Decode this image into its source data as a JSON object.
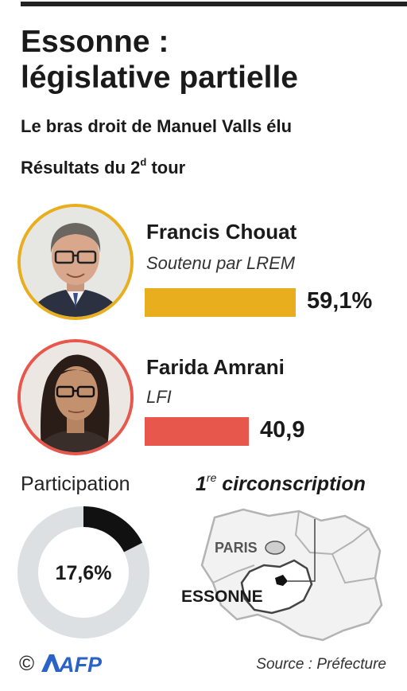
{
  "header": {
    "title_line1": "Essonne :",
    "title_line2": "législative partielle",
    "subtitle": "Le bras droit de Manuel Valls élu",
    "round_prefix": "Résultats du 2",
    "round_sup": "d",
    "round_suffix": " tour"
  },
  "colors": {
    "winner": "#E8AE1E",
    "runner_up": "#E8574C",
    "donut_track": "#DCE0E3",
    "donut_fill": "#111111"
  },
  "chart_data": [
    {
      "type": "bar",
      "categories": [
        "Francis Chouat",
        "Farida Amrani"
      ],
      "values": [
        59.1,
        40.9
      ],
      "value_labels": [
        "59,1%",
        "40,9"
      ],
      "candidates": [
        {
          "name": "Francis Chouat",
          "party": "Soutenu par LREM",
          "value": 59.1,
          "label": "59,1%",
          "color": "#E8AE1E"
        },
        {
          "name": "Farida Amrani",
          "party": "LFI",
          "value": 40.9,
          "label": "40,9",
          "color": "#E8574C"
        }
      ]
    },
    {
      "type": "pie",
      "title": "Participation",
      "values": [
        17.6
      ],
      "value_label": "17,6%"
    }
  ],
  "map": {
    "title_prefix": "1",
    "title_sup": "re",
    "title_suffix": " circonscription",
    "paris_label": "PARIS",
    "essonne_label": "ESSONNE"
  },
  "footer": {
    "copyright": "©",
    "logo_text": "AFP",
    "source": "Source : Préfecture"
  }
}
